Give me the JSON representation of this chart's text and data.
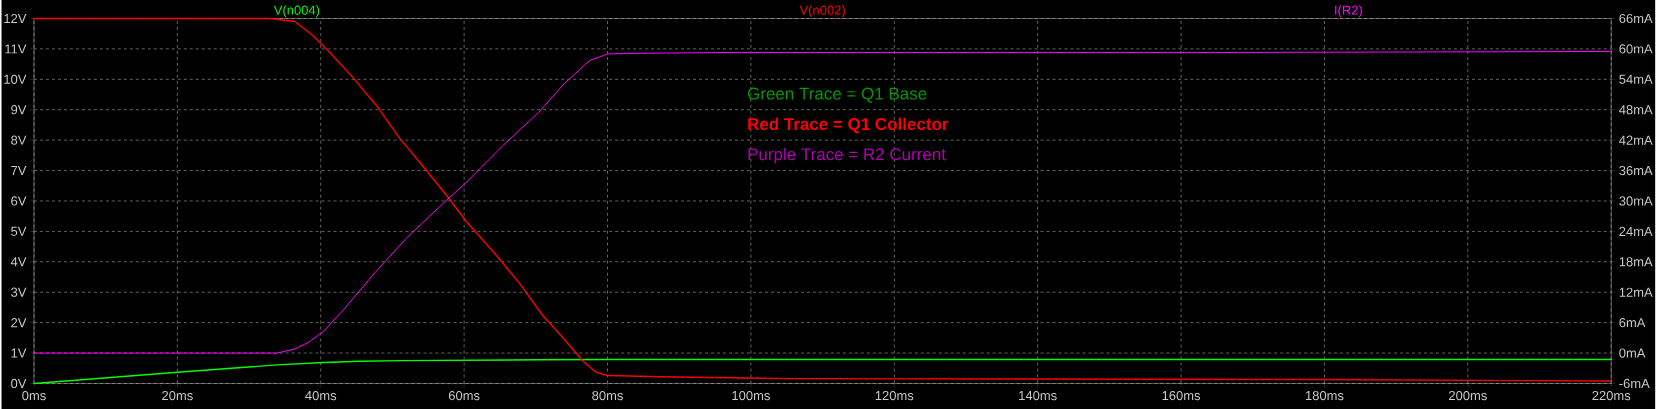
{
  "chart_data": {
    "type": "line",
    "grid": true,
    "line_style": "solid",
    "xlim": [
      0,
      220
    ],
    "xticks": [
      {
        "value": 0,
        "label": "0ms"
      },
      {
        "value": 20,
        "label": "20ms"
      },
      {
        "value": 40,
        "label": "40ms"
      },
      {
        "value": 60,
        "label": "60ms"
      },
      {
        "value": 80,
        "label": "80ms"
      },
      {
        "value": 100,
        "label": "100ms"
      },
      {
        "value": 120,
        "label": "120ms"
      },
      {
        "value": 140,
        "label": "140ms"
      },
      {
        "value": 160,
        "label": "160ms"
      },
      {
        "value": 180,
        "label": "180ms"
      },
      {
        "value": 200,
        "label": "200ms"
      },
      {
        "value": 220,
        "label": "220ms"
      }
    ],
    "ylim": [
      0,
      12
    ],
    "yticks": [
      {
        "value": 0,
        "label": "0V"
      },
      {
        "value": 1,
        "label": "1V"
      },
      {
        "value": 2,
        "label": "2V"
      },
      {
        "value": 3,
        "label": "3V"
      },
      {
        "value": 4,
        "label": "4V"
      },
      {
        "value": 5,
        "label": "5V"
      },
      {
        "value": 6,
        "label": "6V"
      },
      {
        "value": 7,
        "label": "7V"
      },
      {
        "value": 8,
        "label": "8V"
      },
      {
        "value": 9,
        "label": "9V"
      },
      {
        "value": 10,
        "label": "10V"
      },
      {
        "value": 11,
        "label": "11V"
      },
      {
        "value": 12,
        "label": "12V"
      }
    ],
    "y2lim": [
      -6,
      66
    ],
    "y2ticks": [
      {
        "value": -6,
        "label": "-6mA"
      },
      {
        "value": 0,
        "label": "0mA"
      },
      {
        "value": 6,
        "label": "6mA"
      },
      {
        "value": 12,
        "label": "12mA"
      },
      {
        "value": 18,
        "label": "18mA"
      },
      {
        "value": 24,
        "label": "24mA"
      },
      {
        "value": 30,
        "label": "30mA"
      },
      {
        "value": 36,
        "label": "36mA"
      },
      {
        "value": 42,
        "label": "42mA"
      },
      {
        "value": 48,
        "label": "48mA"
      },
      {
        "value": 54,
        "label": "54mA"
      },
      {
        "value": 60,
        "label": "60mA"
      },
      {
        "value": 66,
        "label": "66mA"
      }
    ],
    "series": [
      {
        "name": "V(n004)",
        "color": "#00ff00",
        "x": [
          0,
          20,
          30.4,
          33.9,
          40.4,
          45.4,
          51.4,
          70.4,
          80,
          220
        ],
        "values": [
          0,
          0.37,
          0.55,
          0.61,
          0.69,
          0.73,
          0.75,
          0.78,
          0.79,
          0.79
        ]
      },
      {
        "name": "V(n002)",
        "color": "#ff0000",
        "x": [
          0,
          32.9,
          36.4,
          38.9,
          41.4,
          44.6,
          47.9,
          50.9,
          54.4,
          57.4,
          60.4,
          64.4,
          67.9,
          70.9,
          73.6,
          76.6,
          78.4,
          80,
          87.3,
          105.8,
          178,
          220
        ],
        "values": [
          12,
          12,
          11.9,
          11.44,
          10.85,
          10.03,
          9.1,
          8.1,
          7.1,
          6.23,
          5.3,
          4.24,
          3.24,
          2.25,
          1.55,
          0.73,
          0.37,
          0.26,
          0.22,
          0.16,
          0.13,
          0.08
        ]
      },
      {
        "name": "I(R2)",
        "color": "#ff00ff",
        "axis": "y2",
        "x": [
          0,
          33.9,
          36.4,
          38.4,
          40.4,
          43.4,
          47.4,
          51.9,
          56.9,
          60.4,
          65.4,
          70.4,
          74,
          77.5,
          80,
          82.8,
          96.8,
          168,
          220
        ],
        "values": [
          0,
          0,
          0.8,
          2.2,
          4.3,
          8.9,
          15.6,
          22.6,
          29.3,
          33.8,
          40.9,
          47.5,
          53.2,
          57.7,
          59,
          59.1,
          59.3,
          59.3,
          59.5
        ]
      }
    ],
    "annotations": [
      "Green Trace = Q1 Base",
      "Red Trace = Q1 Collector",
      "Purple Trace = R2 Current"
    ]
  }
}
